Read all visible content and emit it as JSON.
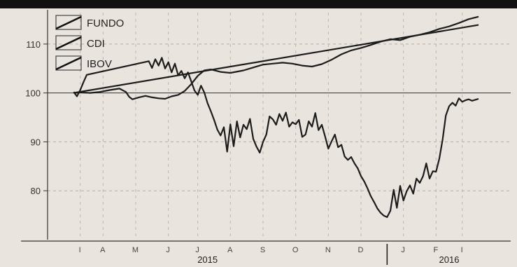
{
  "chart_data": {
    "type": "line",
    "title": "",
    "xlabel": "",
    "ylabel": "",
    "ylim": [
      70,
      117
    ],
    "y_ticks": [
      "80",
      "90",
      "100",
      "110"
    ],
    "reference_line": 100,
    "grid": "dashed",
    "legend_placement": "top-left",
    "x_month_labels": [
      "I",
      "A",
      "M",
      "J",
      "J",
      "A",
      "S",
      "O",
      "N",
      "D",
      "J",
      "F",
      "I"
    ],
    "x_month_pos": [
      0.0,
      0.7,
      1.7,
      2.7,
      3.6,
      4.6,
      5.6,
      6.6,
      7.6,
      8.6,
      9.9,
      10.9,
      11.7
    ],
    "years": [
      {
        "label": "2015",
        "pos": 3.9
      },
      {
        "label": "2016",
        "pos": 11.3
      }
    ],
    "year_divider_pos": 9.4,
    "x_range": [
      -1.0,
      12.8
    ],
    "series": [
      {
        "name": "FUNDO",
        "color": "#1c1c1c",
        "x": [
          -0.2,
          0.0,
          0.3,
          0.6,
          0.9,
          1.2,
          1.4,
          1.5,
          1.6,
          1.8,
          2.0,
          2.2,
          2.4,
          2.6,
          2.8,
          3.0,
          3.2,
          3.4,
          3.6,
          3.8,
          4.0,
          4.3,
          4.6,
          5.0,
          5.3,
          5.6,
          5.9,
          6.2,
          6.5,
          6.8,
          7.1,
          7.4,
          7.7,
          8.0,
          8.3,
          8.6,
          8.9,
          9.2,
          9.5,
          9.8,
          10.1,
          10.4,
          10.7,
          11.0,
          11.3,
          11.6,
          11.9,
          12.2
        ],
        "y": [
          100.0,
          100.1,
          100.0,
          100.2,
          100.6,
          100.9,
          100.2,
          99.2,
          98.7,
          99.1,
          99.4,
          99.1,
          98.9,
          98.8,
          99.3,
          99.6,
          100.4,
          101.8,
          103.5,
          104.6,
          104.8,
          104.3,
          104.1,
          104.6,
          105.2,
          105.8,
          106.0,
          106.2,
          106.0,
          105.6,
          105.4,
          105.9,
          106.8,
          107.9,
          108.7,
          109.2,
          109.8,
          110.5,
          111.0,
          110.8,
          111.5,
          111.9,
          112.4,
          113.1,
          113.6,
          114.3,
          115.1,
          115.6
        ]
      },
      {
        "name": "CDI",
        "color": "#1c1c1c",
        "x": [
          -0.2,
          12.2
        ],
        "y": [
          100.0,
          113.9
        ]
      },
      {
        "name": "IBOV",
        "color": "#1c1c1c",
        "x": [
          -0.2,
          -0.1,
          0.0,
          0.1,
          0.2,
          2.1,
          2.2,
          2.3,
          2.4,
          2.5,
          2.6,
          2.7,
          2.8,
          2.9,
          3.0,
          3.1,
          3.2,
          3.3,
          3.4,
          3.5,
          3.6,
          3.7,
          3.8,
          3.9,
          4.0,
          4.1,
          4.2,
          4.3,
          4.4,
          4.5,
          4.6,
          4.7,
          4.8,
          4.9,
          5.0,
          5.1,
          5.2,
          5.3,
          5.4,
          5.5,
          5.6,
          5.7,
          5.8,
          5.9,
          6.0,
          6.1,
          6.2,
          6.3,
          6.4,
          6.5,
          6.6,
          6.7,
          6.8,
          6.9,
          7.0,
          7.1,
          7.2,
          7.3,
          7.4,
          7.5,
          7.6,
          7.7,
          7.8,
          7.9,
          8.0,
          8.1,
          8.2,
          8.3,
          8.4,
          8.5,
          8.6,
          8.7,
          8.8,
          8.9,
          9.0,
          9.1,
          9.2,
          9.3,
          9.4,
          9.5,
          9.6,
          9.7,
          9.8,
          9.9,
          10.0,
          10.1,
          10.2,
          10.3,
          10.4,
          10.5,
          10.6,
          10.7,
          10.8,
          10.9,
          11.0,
          11.1,
          11.2,
          11.3,
          11.4,
          11.5,
          11.6,
          11.7,
          11.8,
          11.9,
          12.0,
          12.1,
          12.2
        ],
        "y": [
          100.2,
          99.3,
          100.6,
          102.2,
          103.7,
          106.5,
          105.1,
          106.9,
          105.6,
          107.2,
          105.0,
          106.3,
          104.2,
          106.0,
          103.6,
          104.5,
          103.0,
          104.2,
          102.4,
          100.5,
          99.6,
          101.5,
          100.1,
          97.9,
          96.3,
          94.5,
          92.5,
          91.3,
          93.0,
          88.0,
          93.6,
          89.1,
          94.2,
          90.9,
          93.5,
          92.6,
          94.7,
          90.6,
          89.0,
          87.8,
          90.0,
          91.5,
          95.2,
          94.6,
          93.5,
          95.7,
          94.3,
          96.0,
          93.1,
          94.0,
          93.6,
          94.5,
          91.0,
          91.5,
          94.2,
          93.1,
          95.9,
          92.4,
          93.5,
          91.1,
          88.6,
          90.1,
          91.5,
          88.9,
          89.4,
          87.0,
          86.3,
          86.9,
          85.6,
          84.6,
          83.0,
          81.9,
          80.5,
          78.9,
          77.7,
          76.4,
          75.5,
          74.9,
          74.6,
          75.9,
          80.2,
          76.5,
          81.0,
          78.0,
          79.9,
          81.1,
          79.4,
          82.5,
          81.6,
          83.0,
          85.6,
          82.5,
          84.0,
          83.9,
          86.6,
          90.5,
          95.4,
          97.3,
          98.0,
          97.4,
          98.9,
          98.2,
          98.5,
          98.7,
          98.4,
          98.6,
          98.8
        ]
      }
    ]
  }
}
